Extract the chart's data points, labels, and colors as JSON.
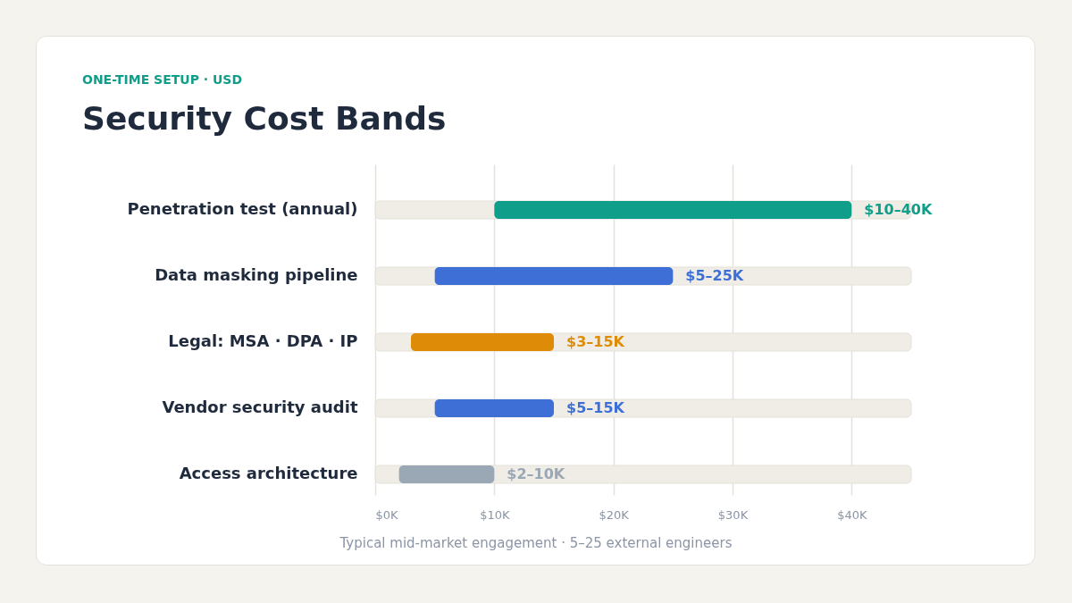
{
  "chart_data": {
    "type": "bar",
    "orientation": "horizontal",
    "subtitle": "ONE-TIME SETUP · USD",
    "title": "Security Cost Bands",
    "categories": [
      "Penetration test (annual)",
      "Data masking pipeline",
      "Legal: MSA · DPA · IP",
      "Vendor security audit",
      "Access architecture"
    ],
    "base": [
      10,
      5,
      3,
      5,
      2
    ],
    "values": [
      30,
      20,
      12,
      10,
      8
    ],
    "colors": [
      "#0f9e8a",
      "#3d6fd7",
      "#de8c08",
      "#3d6fd7",
      "#9aa8b5"
    ],
    "value_labels": [
      "$10–40K",
      "$5–25K",
      "$3–15K",
      "$5–15K",
      "$2–10K"
    ],
    "xlim": [
      0,
      45
    ],
    "xticks": [
      {
        "value": 0,
        "label": "$0K"
      },
      {
        "value": 10,
        "label": "$10K"
      },
      {
        "value": 20,
        "label": "$20K"
      },
      {
        "value": 30,
        "label": "$30K"
      },
      {
        "value": 40,
        "label": "$40K"
      }
    ],
    "grid": "x",
    "annotations": [
      "Typical mid-market engagement · 5–25 external engineers"
    ]
  }
}
